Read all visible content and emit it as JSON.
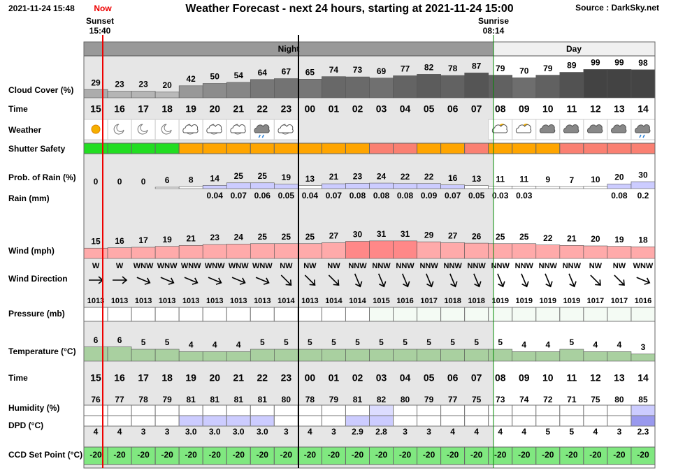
{
  "header": {
    "timestamp": "2021-11-24 15:48",
    "now": "Now",
    "sunset_label": "Sunset",
    "sunset": "15:40",
    "title": "Weather Forecast - next 24 hours, starting at 2021-11-24 15:00",
    "source": "Source : DarkSky.net",
    "sunrise_label": "Sunrise",
    "sunrise": "08:14",
    "night": "Night",
    "day": "Day"
  },
  "hours": [
    "15",
    "16",
    "17",
    "18",
    "19",
    "20",
    "21",
    "22",
    "23",
    "00",
    "01",
    "02",
    "03",
    "04",
    "05",
    "06",
    "07",
    "08",
    "09",
    "10",
    "11",
    "12",
    "13",
    "14"
  ],
  "rows": {
    "cloud_cover": {
      "label": "Cloud Cover (%)",
      "values": [
        29,
        23,
        23,
        20,
        42,
        50,
        54,
        64,
        67,
        65,
        74,
        73,
        69,
        77,
        82,
        78,
        87,
        79,
        70,
        79,
        89,
        99,
        99,
        98
      ]
    },
    "time": {
      "label": "Time"
    },
    "weather": {
      "label": "Weather"
    },
    "shutter": {
      "label": "Shutter Safety",
      "colors": [
        "#22dd22",
        "#22dd22",
        "#22dd22",
        "#22dd22",
        "#ffa500",
        "#ffa500",
        "#ffa500",
        "#ffa500",
        "#ffa500",
        "#ffa500",
        "#ffa500",
        "#ffa500",
        "#fa8072",
        "#fa8072",
        "#ffa500",
        "#ffa500",
        "#fa8072",
        "#ffa500",
        "#ffa500",
        "#ffa500",
        "#fa8072",
        "#fa8072",
        "#fa8072",
        "#fa8072"
      ]
    },
    "rain_prob": {
      "label": "Prob. of Rain (%)",
      "values": [
        0,
        0,
        0,
        6,
        8,
        14,
        25,
        25,
        19,
        13,
        21,
        23,
        24,
        22,
        22,
        16,
        13,
        11,
        11,
        9,
        7,
        10,
        20,
        30
      ]
    },
    "rain": {
      "label": "Rain (mm)",
      "values": [
        null,
        null,
        null,
        null,
        null,
        0.04,
        0.07,
        0.06,
        0.05,
        0.04,
        0.07,
        0.08,
        0.08,
        0.08,
        0.09,
        0.07,
        0.05,
        0.03,
        0.03,
        null,
        null,
        null,
        0.08,
        0.2
      ]
    },
    "wind": {
      "label": "Wind (mph)",
      "values": [
        15,
        16,
        17,
        19,
        21,
        23,
        24,
        25,
        25,
        25,
        27,
        30,
        31,
        31,
        29,
        27,
        26,
        25,
        25,
        22,
        21,
        20,
        19,
        18
      ]
    },
    "wind_dir": {
      "label": "Wind Direction",
      "values": [
        "W",
        "W",
        "WNW",
        "WNW",
        "WNW",
        "WNW",
        "WNW",
        "WNW",
        "NW",
        "NW",
        "NW",
        "NNW",
        "NNW",
        "NNW",
        "NNW",
        "NNW",
        "NNW",
        "NNW",
        "NNW",
        "NNW",
        "NNW",
        "NW",
        "NW",
        "WNW"
      ]
    },
    "pressure": {
      "label": "Pressure (mb)",
      "values": [
        1013,
        1013,
        1013,
        1013,
        1013,
        1013,
        1013,
        1013,
        1014,
        1013,
        1014,
        1014,
        1015,
        1016,
        1017,
        1018,
        1018,
        1019,
        1019,
        1019,
        1019,
        1017,
        1017,
        1016
      ]
    },
    "temperature": {
      "label": "Temperature (°C)",
      "values": [
        6,
        6,
        5,
        5,
        4,
        4,
        4,
        5,
        5,
        5,
        5,
        5,
        5,
        5,
        5,
        5,
        5,
        5,
        4,
        4,
        5,
        4,
        4,
        3
      ]
    },
    "time2": {
      "label": "Time"
    },
    "humidity": {
      "label": "Humidity (%)",
      "values": [
        76,
        77,
        78,
        79,
        81,
        81,
        81,
        81,
        80,
        78,
        79,
        81,
        82,
        80,
        79,
        77,
        75,
        73,
        74,
        72,
        71,
        75,
        80,
        85
      ]
    },
    "dpd": {
      "label": "DPD (°C)",
      "values": [
        4,
        4,
        3,
        3,
        3,
        3,
        3,
        3,
        3,
        4,
        3,
        2.9,
        2.8,
        3,
        3,
        4,
        4,
        4,
        4,
        5,
        5,
        4,
        3,
        2.3
      ],
      "value_labels": [
        "4",
        "4",
        "3",
        "3",
        "3.0",
        "3.0",
        "3.0",
        "3.0",
        "3",
        "4",
        "3",
        "2.9",
        "2.8",
        "3",
        "3",
        "4",
        "4",
        "4",
        "4",
        "5",
        "5",
        "4",
        "3",
        "2.3"
      ],
      "colors": [
        "#fff",
        "#fff",
        "#fff",
        "#fff",
        "#ccccff",
        "#ccccff",
        "#ccccff",
        "#ccccff",
        "#fff",
        "#fff",
        "#fff",
        "#ccccff",
        "#ccccff",
        "#fff",
        "#fff",
        "#fff",
        "#fff",
        "#fff",
        "#fff",
        "#fff",
        "#fff",
        "#fff",
        "#fff",
        "#9999ee"
      ]
    },
    "ccd": {
      "label": "CCD Set Point (°C)",
      "values": [
        -20,
        -20,
        -20,
        -20,
        -20,
        -20,
        -20,
        -20,
        -20,
        -20,
        -20,
        -20,
        -20,
        -20,
        -20,
        -20,
        -20,
        -20,
        -20,
        -20,
        -20,
        -20,
        -20,
        -20
      ]
    }
  }
}
